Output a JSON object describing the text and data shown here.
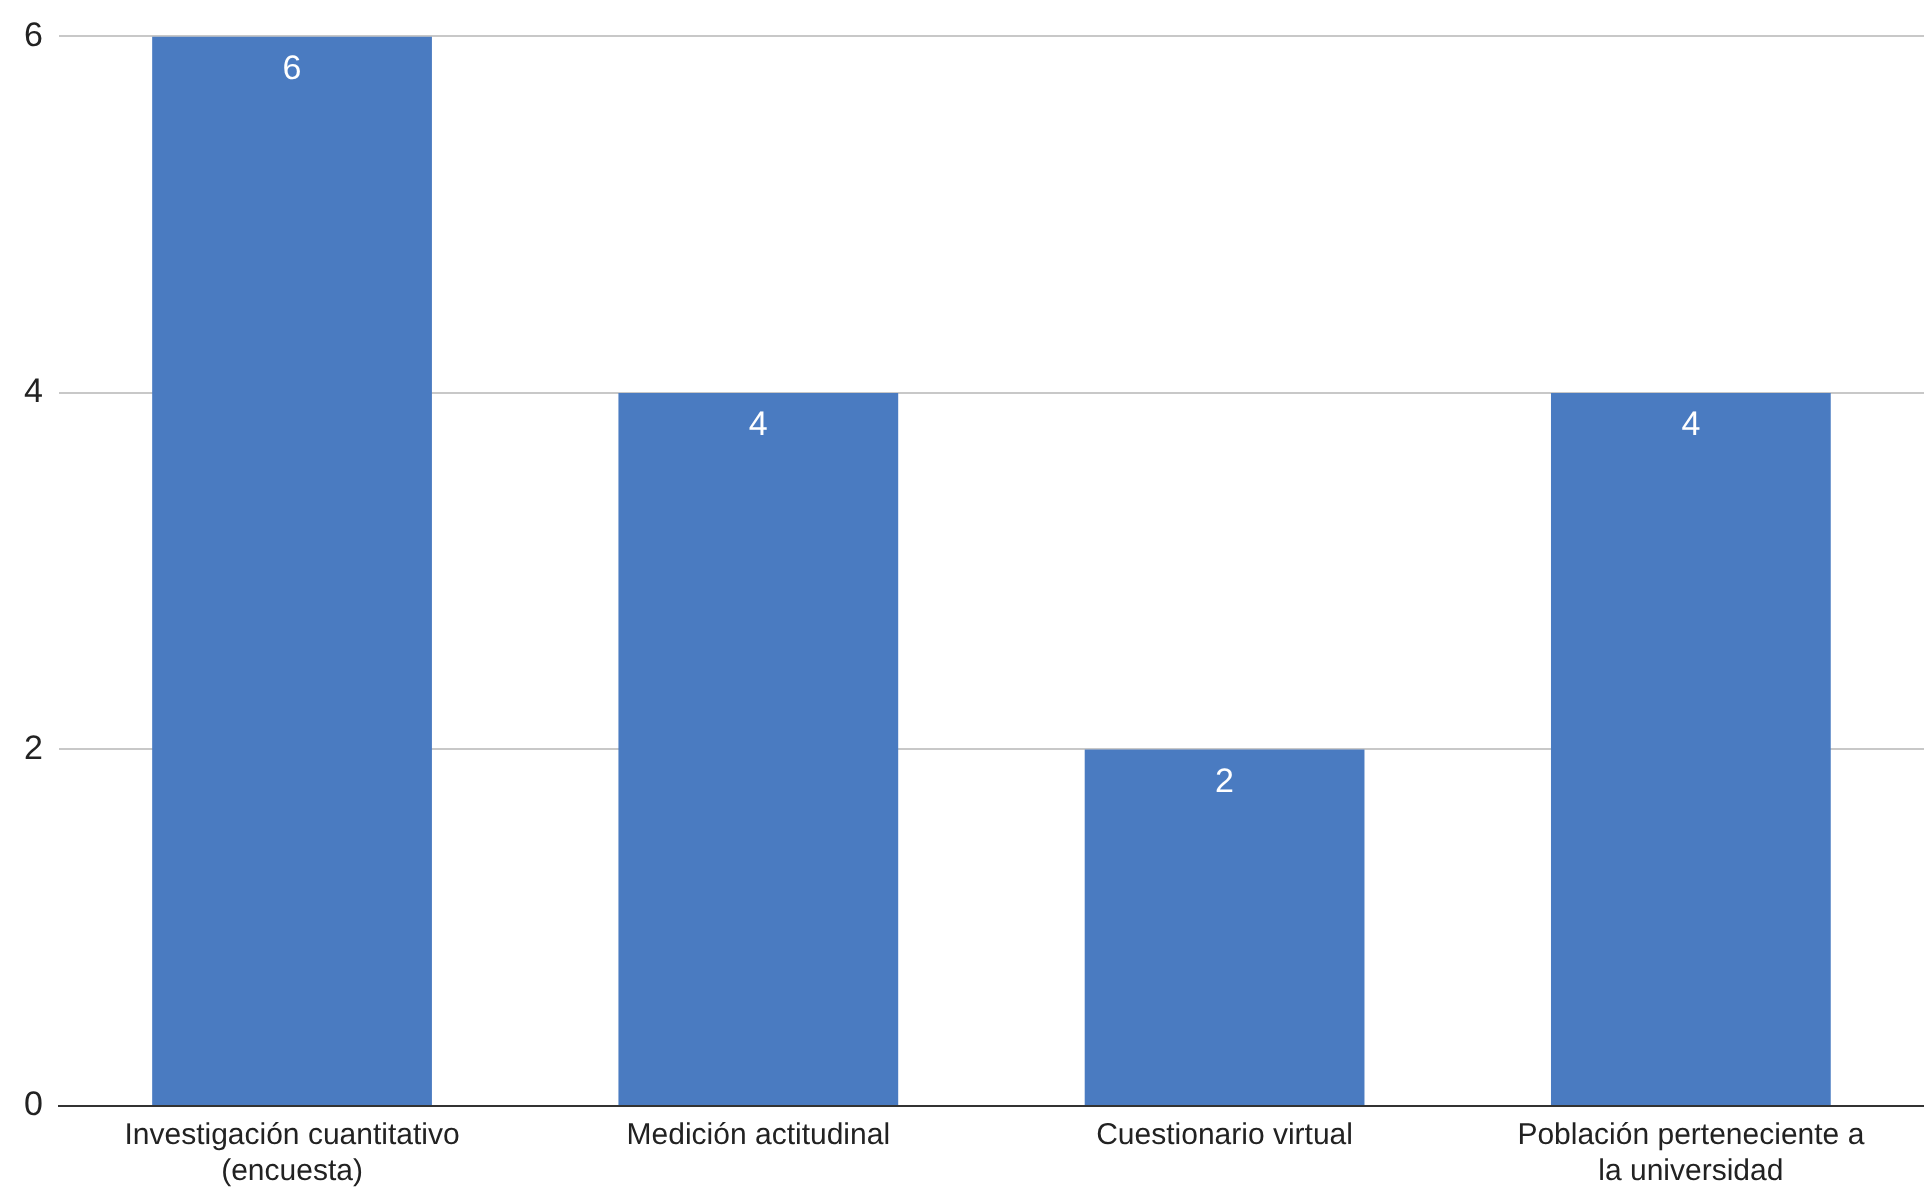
{
  "chart_data": {
    "type": "bar",
    "categories": [
      "Investigación cuantitativo (encuesta)",
      "Medición actitudinal",
      "Cuestionario virtual",
      "Población perteneciente a la universidad"
    ],
    "values": [
      6,
      4,
      2,
      4
    ],
    "color": "#4a7bc1",
    "ylim": [
      0,
      6
    ],
    "yticks": [
      0,
      2,
      4,
      6
    ],
    "grid": "y",
    "data_labels": true
  }
}
